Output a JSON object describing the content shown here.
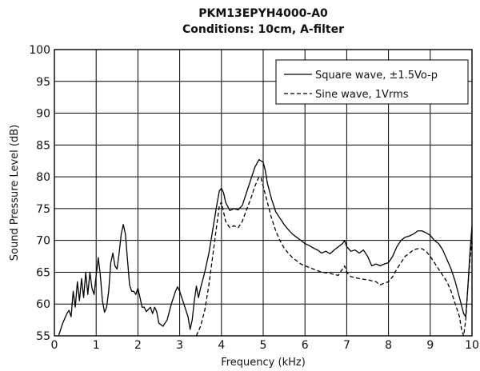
{
  "chart_data": {
    "type": "line",
    "title": "PKM13EPYH4000-A0",
    "subtitle": "Conditions: 10cm, A-filter",
    "xlabel": "Frequency (kHz)",
    "ylabel": "Sound Pressure Level (dB)",
    "xlim": [
      0,
      10
    ],
    "ylim": [
      55,
      100
    ],
    "x_ticks": [
      0,
      1,
      2,
      3,
      4,
      5,
      6,
      7,
      8,
      9,
      10
    ],
    "y_ticks": [
      55,
      60,
      65,
      70,
      75,
      80,
      85,
      90,
      95,
      100
    ],
    "grid": true,
    "legend_position": "top-right",
    "series": [
      {
        "name": "Square wave, ±1.5Vo-p",
        "line_style": "solid",
        "color": "#000000",
        "points": [
          [
            0.1,
            55.0
          ],
          [
            0.2,
            57.0
          ],
          [
            0.3,
            58.5
          ],
          [
            0.35,
            59.0
          ],
          [
            0.4,
            58.0
          ],
          [
            0.45,
            62.0
          ],
          [
            0.5,
            59.5
          ],
          [
            0.55,
            63.5
          ],
          [
            0.6,
            60.5
          ],
          [
            0.65,
            64.0
          ],
          [
            0.7,
            61.0
          ],
          [
            0.75,
            65.0
          ],
          [
            0.8,
            61.5
          ],
          [
            0.85,
            65.0
          ],
          [
            0.9,
            62.5
          ],
          [
            0.95,
            61.5
          ],
          [
            1.0,
            64.5
          ],
          [
            1.05,
            67.3
          ],
          [
            1.1,
            64.5
          ],
          [
            1.15,
            60.5
          ],
          [
            1.2,
            58.7
          ],
          [
            1.25,
            59.5
          ],
          [
            1.3,
            62.0
          ],
          [
            1.35,
            66.5
          ],
          [
            1.4,
            68.0
          ],
          [
            1.45,
            66.0
          ],
          [
            1.5,
            65.5
          ],
          [
            1.55,
            68.0
          ],
          [
            1.6,
            71.0
          ],
          [
            1.65,
            72.5
          ],
          [
            1.7,
            71.0
          ],
          [
            1.75,
            67.0
          ],
          [
            1.8,
            63.0
          ],
          [
            1.85,
            62.0
          ],
          [
            1.9,
            62.0
          ],
          [
            1.95,
            61.5
          ],
          [
            2.0,
            62.5
          ],
          [
            2.05,
            61.0
          ],
          [
            2.1,
            59.5
          ],
          [
            2.15,
            59.5
          ],
          [
            2.2,
            58.8
          ],
          [
            2.3,
            59.5
          ],
          [
            2.35,
            58.5
          ],
          [
            2.4,
            59.5
          ],
          [
            2.45,
            58.8
          ],
          [
            2.5,
            57.0
          ],
          [
            2.6,
            56.5
          ],
          [
            2.7,
            57.5
          ],
          [
            2.8,
            60.0
          ],
          [
            2.9,
            62.0
          ],
          [
            2.95,
            62.7
          ],
          [
            3.0,
            62.0
          ],
          [
            3.1,
            60.0
          ],
          [
            3.2,
            58.0
          ],
          [
            3.25,
            56.0
          ],
          [
            3.3,
            57.5
          ],
          [
            3.35,
            60.5
          ],
          [
            3.4,
            62.8
          ],
          [
            3.45,
            61.0
          ],
          [
            3.5,
            62.5
          ],
          [
            3.6,
            65.0
          ],
          [
            3.7,
            68.0
          ],
          [
            3.8,
            72.0
          ],
          [
            3.9,
            76.0
          ],
          [
            3.95,
            77.8
          ],
          [
            4.0,
            78.2
          ],
          [
            4.05,
            77.5
          ],
          [
            4.1,
            76.0
          ],
          [
            4.2,
            74.7
          ],
          [
            4.3,
            75.0
          ],
          [
            4.4,
            74.8
          ],
          [
            4.5,
            75.5
          ],
          [
            4.6,
            77.5
          ],
          [
            4.7,
            79.5
          ],
          [
            4.8,
            81.5
          ],
          [
            4.9,
            82.7
          ],
          [
            5.0,
            82.3
          ],
          [
            5.05,
            81.0
          ],
          [
            5.1,
            79.0
          ],
          [
            5.2,
            76.5
          ],
          [
            5.3,
            74.5
          ],
          [
            5.4,
            73.5
          ],
          [
            5.5,
            72.5
          ],
          [
            5.6,
            71.7
          ],
          [
            5.7,
            71.0
          ],
          [
            5.8,
            70.5
          ],
          [
            5.9,
            70.0
          ],
          [
            6.0,
            69.5
          ],
          [
            6.1,
            69.2
          ],
          [
            6.2,
            68.8
          ],
          [
            6.3,
            68.5
          ],
          [
            6.4,
            68.0
          ],
          [
            6.5,
            68.3
          ],
          [
            6.6,
            67.9
          ],
          [
            6.7,
            68.5
          ],
          [
            6.8,
            69.0
          ],
          [
            6.9,
            69.5
          ],
          [
            6.95,
            70.0
          ],
          [
            7.0,
            69.0
          ],
          [
            7.1,
            68.3
          ],
          [
            7.2,
            68.5
          ],
          [
            7.3,
            68.0
          ],
          [
            7.4,
            68.5
          ],
          [
            7.5,
            67.5
          ],
          [
            7.6,
            66.0
          ],
          [
            7.7,
            66.3
          ],
          [
            7.8,
            66.0
          ],
          [
            7.9,
            66.3
          ],
          [
            8.0,
            66.5
          ],
          [
            8.1,
            67.5
          ],
          [
            8.2,
            69.0
          ],
          [
            8.3,
            70.0
          ],
          [
            8.4,
            70.5
          ],
          [
            8.5,
            70.7
          ],
          [
            8.6,
            71.0
          ],
          [
            8.7,
            71.5
          ],
          [
            8.8,
            71.5
          ],
          [
            8.9,
            71.2
          ],
          [
            9.0,
            70.8
          ],
          [
            9.1,
            70.0
          ],
          [
            9.2,
            69.5
          ],
          [
            9.3,
            68.5
          ],
          [
            9.4,
            67.0
          ],
          [
            9.5,
            65.5
          ],
          [
            9.6,
            63.5
          ],
          [
            9.7,
            61.0
          ],
          [
            9.8,
            58.5
          ],
          [
            9.85,
            58.0
          ],
          [
            9.9,
            62.5
          ],
          [
            9.95,
            68.0
          ],
          [
            10.0,
            72.3
          ]
        ]
      },
      {
        "name": "Sine wave, 1Vrms",
        "line_style": "dashed",
        "color": "#000000",
        "points": [
          [
            3.4,
            55.0
          ],
          [
            3.5,
            56.5
          ],
          [
            3.6,
            59.0
          ],
          [
            3.7,
            63.0
          ],
          [
            3.8,
            68.0
          ],
          [
            3.9,
            73.0
          ],
          [
            3.95,
            75.5
          ],
          [
            4.0,
            76.0
          ],
          [
            4.05,
            74.5
          ],
          [
            4.1,
            73.0
          ],
          [
            4.2,
            72.0
          ],
          [
            4.3,
            72.3
          ],
          [
            4.4,
            72.0
          ],
          [
            4.5,
            73.0
          ],
          [
            4.6,
            74.8
          ],
          [
            4.7,
            76.5
          ],
          [
            4.8,
            78.5
          ],
          [
            4.9,
            80.0
          ],
          [
            4.95,
            79.8
          ],
          [
            5.0,
            78.5
          ],
          [
            5.1,
            76.0
          ],
          [
            5.2,
            73.5
          ],
          [
            5.3,
            71.5
          ],
          [
            5.4,
            70.0
          ],
          [
            5.5,
            68.8
          ],
          [
            5.6,
            68.0
          ],
          [
            5.7,
            67.3
          ],
          [
            5.8,
            66.8
          ],
          [
            5.9,
            66.3
          ],
          [
            6.0,
            66.0
          ],
          [
            6.2,
            65.5
          ],
          [
            6.4,
            65.0
          ],
          [
            6.6,
            64.8
          ],
          [
            6.8,
            64.5
          ],
          [
            6.95,
            66.0
          ],
          [
            7.0,
            65.0
          ],
          [
            7.1,
            64.3
          ],
          [
            7.3,
            64.0
          ],
          [
            7.5,
            63.8
          ],
          [
            7.7,
            63.5
          ],
          [
            7.8,
            63.0
          ],
          [
            7.9,
            63.3
          ],
          [
            8.0,
            63.5
          ],
          [
            8.1,
            64.3
          ],
          [
            8.2,
            65.5
          ],
          [
            8.3,
            66.5
          ],
          [
            8.4,
            67.5
          ],
          [
            8.5,
            68.0
          ],
          [
            8.6,
            68.5
          ],
          [
            8.7,
            68.7
          ],
          [
            8.8,
            68.7
          ],
          [
            8.9,
            68.3
          ],
          [
            9.0,
            67.5
          ],
          [
            9.1,
            66.5
          ],
          [
            9.2,
            65.5
          ],
          [
            9.3,
            64.5
          ],
          [
            9.4,
            63.5
          ],
          [
            9.5,
            62.0
          ],
          [
            9.6,
            60.0
          ],
          [
            9.7,
            58.0
          ],
          [
            9.75,
            56.0
          ],
          [
            9.8,
            55.0
          ],
          [
            9.85,
            57.5
          ],
          [
            9.9,
            62.5
          ],
          [
            9.95,
            67.0
          ],
          [
            10.0,
            70.0
          ]
        ]
      }
    ]
  }
}
